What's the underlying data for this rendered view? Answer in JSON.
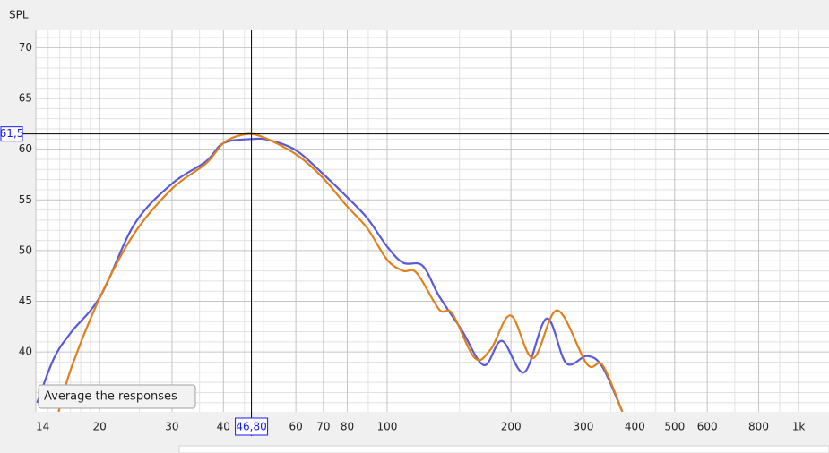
{
  "chart_data": {
    "type": "line",
    "ylabel": "SPL",
    "log_x": true,
    "xlim": [
      14,
      1186
    ],
    "ylim": [
      34.1,
      71.8
    ],
    "xticks": [
      14,
      20,
      30,
      40,
      60,
      70,
      80,
      100,
      200,
      300,
      400,
      500,
      600,
      800,
      {
        "value": 1000,
        "label": "1k"
      }
    ],
    "yticks": [
      40,
      45,
      50,
      55,
      60,
      65,
      70
    ],
    "x_minor_grid": [
      15,
      16,
      17,
      18,
      19,
      25,
      35,
      45,
      50,
      90,
      150,
      250,
      350,
      450,
      700,
      900
    ],
    "y_minor_grid": [
      35,
      36,
      37,
      38,
      39,
      41,
      42,
      43,
      44,
      46,
      47,
      48,
      49,
      51,
      52,
      53,
      54,
      56,
      57,
      58,
      59,
      61,
      62,
      63,
      64,
      66,
      67,
      68,
      69,
      71
    ],
    "grid": true,
    "cursor": {
      "x": {
        "value": 46.8,
        "label": "46,80"
      },
      "y": {
        "value": 61.5,
        "label": "61,5"
      }
    },
    "tooltip": "Average the responses",
    "series": [
      {
        "color": "#5a5ad8",
        "x": [
          14.1,
          15.5,
          17.1,
          20.1,
          24.3,
          30,
          36.3,
          40,
          46.7,
          51.6,
          60,
          69.7,
          79.8,
          89.5,
          100,
          109.4,
          122,
          133.8,
          151.6,
          171.9,
          190.1,
          215.5,
          244.3,
          272.4,
          306.1,
          334,
          373
        ],
        "values": [
          35,
          39.4,
          42.0,
          45.5,
          52.6,
          56.6,
          58.8,
          60.6,
          61.0,
          60.9,
          59.9,
          57.6,
          55.3,
          53.2,
          50.4,
          48.8,
          48.5,
          45.5,
          42.2,
          38.7,
          41.1,
          38.0,
          43.3,
          38.9,
          39.6,
          38.5,
          34.1
        ]
      },
      {
        "color": "#e0801c",
        "x": [
          15.9,
          17.1,
          20.1,
          24.3,
          30,
          36.3,
          40,
          44.3,
          49.1,
          60,
          69.7,
          79.8,
          89.5,
          100,
          109.4,
          118,
          133.8,
          144,
          163.4,
          178.8,
          199.8,
          226.4,
          259.3,
          306.1,
          334,
          373
        ],
        "values": [
          34.1,
          38.5,
          45.5,
          51.7,
          56.1,
          58.6,
          60.6,
          61.4,
          61.3,
          59.5,
          57.2,
          54.4,
          52.2,
          49.1,
          48.0,
          47.8,
          44.2,
          43.8,
          39.4,
          40.3,
          43.6,
          39.4,
          44.1,
          38.8,
          38.7,
          34.1
        ]
      }
    ]
  }
}
